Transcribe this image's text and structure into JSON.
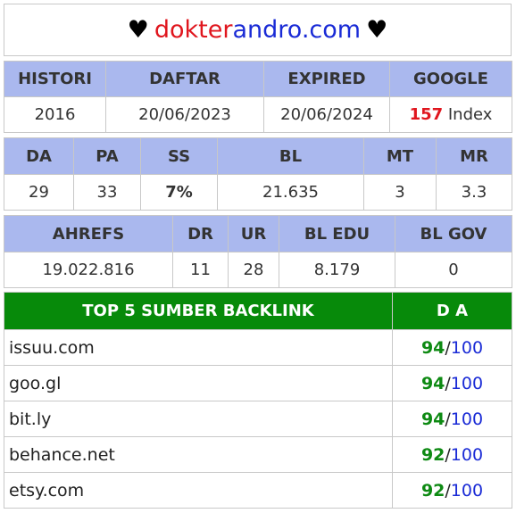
{
  "header": {
    "heart_left": "♥",
    "domain_part1": "dokter",
    "domain_part2": "andro.com",
    "heart_right": "♥"
  },
  "table1": {
    "headers": [
      "HISTORI",
      "DAFTAR",
      "EXPIRED",
      "GOOGLE"
    ],
    "values": {
      "histori": "2016",
      "daftar": "20/06/2023",
      "expired": "20/06/2024",
      "google_count": "157",
      "google_label": "Index"
    }
  },
  "table2": {
    "headers": [
      "DA",
      "PA",
      "SS",
      "BL",
      "MT",
      "MR"
    ],
    "values": [
      "29",
      "33",
      "7%",
      "21.635",
      "3",
      "3.3"
    ]
  },
  "table3": {
    "headers": [
      "AHREFS",
      "DR",
      "UR",
      "BL EDU",
      "BL GOV"
    ],
    "values": [
      "19.022.816",
      "11",
      "28",
      "8.179",
      "0"
    ]
  },
  "backlinks": {
    "header_source": "TOP 5 SUMBER BACKLINK",
    "header_da": "D A",
    "rows": [
      {
        "site": "issuu.com",
        "score": "94",
        "max": "100"
      },
      {
        "site": "goo.gl",
        "score": "94",
        "max": "100"
      },
      {
        "site": "bit.ly",
        "score": "94",
        "max": "100"
      },
      {
        "site": "behance.net",
        "score": "92",
        "max": "100"
      },
      {
        "site": "etsy.com",
        "score": "92",
        "max": "100"
      }
    ]
  },
  "colors": {
    "header_bg": "#aab8ee",
    "backlink_header_bg": "#078a0a",
    "accent_red": "#e0161e",
    "accent_green": "#0e8a13",
    "accent_blue": "#1a2bd6",
    "highlight": "#f6f01e"
  }
}
